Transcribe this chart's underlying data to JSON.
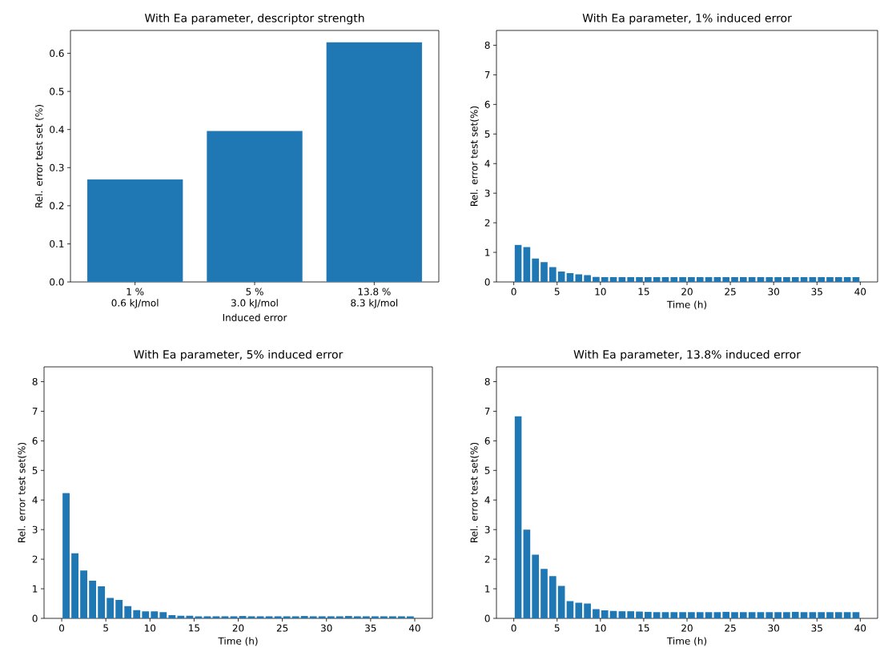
{
  "chart_data": [
    {
      "type": "bar",
      "title": "With Ea parameter, descriptor strength",
      "xlabel": "Induced error",
      "ylabel": "Rel. error test set (%)",
      "color": "#1f77b4",
      "categories": [
        "1 %\n0.6 kJ/mol",
        "5 %\n3.0 kJ/mol",
        "13.8 %\n8.3 kJ/mol"
      ],
      "values": [
        0.269,
        0.396,
        0.629
      ],
      "ylim": [
        0,
        0.66
      ],
      "yticks": [
        {
          "value": 0,
          "label": "0.0"
        },
        {
          "value": 0.1,
          "label": "0.1"
        },
        {
          "value": 0.2,
          "label": "0.2"
        },
        {
          "value": 0.3,
          "label": "0.3"
        },
        {
          "value": 0.4,
          "label": "0.4"
        },
        {
          "value": 0.5,
          "label": "0.5"
        },
        {
          "value": 0.6,
          "label": "0.6"
        }
      ]
    },
    {
      "type": "bar",
      "title": "With Ea parameter, 1% induced error",
      "xlabel": "Time (h)",
      "ylabel": "Rel. error test set(%)",
      "color": "#1f77b4",
      "x": [
        0.5,
        1.5,
        2.5,
        3.5,
        4.5,
        5.5,
        6.5,
        7.5,
        8.5,
        9.5,
        10.5,
        11.5,
        12.5,
        13.5,
        14.5,
        15.5,
        16.5,
        17.5,
        18.5,
        19.5,
        20.5,
        21.5,
        22.5,
        23.5,
        24.5,
        25.5,
        26.5,
        27.5,
        28.5,
        29.5,
        30.5,
        31.5,
        32.5,
        33.5,
        34.5,
        35.5,
        36.5,
        37.5,
        38.5,
        39.5
      ],
      "values": [
        1.25,
        1.18,
        0.79,
        0.67,
        0.5,
        0.35,
        0.3,
        0.26,
        0.23,
        0.17,
        0.16,
        0.16,
        0.16,
        0.16,
        0.16,
        0.16,
        0.16,
        0.16,
        0.16,
        0.16,
        0.16,
        0.16,
        0.16,
        0.16,
        0.16,
        0.16,
        0.16,
        0.16,
        0.16,
        0.16,
        0.16,
        0.16,
        0.16,
        0.16,
        0.16,
        0.16,
        0.16,
        0.16,
        0.16,
        0.16
      ],
      "xlim": [
        -2,
        42
      ],
      "xticks": [
        0,
        5,
        10,
        15,
        20,
        25,
        30,
        35,
        40
      ],
      "ylim": [
        0,
        8.5
      ],
      "yticks": [
        0,
        1,
        2,
        3,
        4,
        5,
        6,
        7,
        8
      ]
    },
    {
      "type": "bar",
      "title": "With Ea parameter, 5% induced error",
      "xlabel": "Time (h)",
      "ylabel": "Rel. error test set(%)",
      "color": "#1f77b4",
      "x": [
        0.5,
        1.5,
        2.5,
        3.5,
        4.5,
        5.5,
        6.5,
        7.5,
        8.5,
        9.5,
        10.5,
        11.5,
        12.5,
        13.5,
        14.5,
        15.5,
        16.5,
        17.5,
        18.5,
        19.5,
        20.5,
        21.5,
        22.5,
        23.5,
        24.5,
        25.5,
        26.5,
        27.5,
        28.5,
        29.5,
        30.5,
        31.5,
        32.5,
        33.5,
        34.5,
        35.5,
        36.5,
        37.5,
        38.5,
        39.5
      ],
      "values": [
        4.24,
        2.2,
        1.62,
        1.27,
        1.08,
        0.69,
        0.62,
        0.41,
        0.28,
        0.24,
        0.24,
        0.21,
        0.11,
        0.09,
        0.09,
        0.07,
        0.07,
        0.07,
        0.07,
        0.07,
        0.08,
        0.07,
        0.07,
        0.07,
        0.07,
        0.07,
        0.07,
        0.08,
        0.07,
        0.07,
        0.07,
        0.07,
        0.08,
        0.07,
        0.07,
        0.07,
        0.07,
        0.07,
        0.07,
        0.07
      ],
      "xlim": [
        -2,
        42
      ],
      "xticks": [
        0,
        5,
        10,
        15,
        20,
        25,
        30,
        35,
        40
      ],
      "ylim": [
        0,
        8.5
      ],
      "yticks": [
        0,
        1,
        2,
        3,
        4,
        5,
        6,
        7,
        8
      ]
    },
    {
      "type": "bar",
      "title": "With Ea parameter, 13.8% induced error",
      "xlabel": "Time (h)",
      "ylabel": "Rel. error test set(%)",
      "color": "#1f77b4",
      "x": [
        0.5,
        1.5,
        2.5,
        3.5,
        4.5,
        5.5,
        6.5,
        7.5,
        8.5,
        9.5,
        10.5,
        11.5,
        12.5,
        13.5,
        14.5,
        15.5,
        16.5,
        17.5,
        18.5,
        19.5,
        20.5,
        21.5,
        22.5,
        23.5,
        24.5,
        25.5,
        26.5,
        27.5,
        28.5,
        29.5,
        30.5,
        31.5,
        32.5,
        33.5,
        34.5,
        35.5,
        36.5,
        37.5,
        38.5,
        39.5
      ],
      "values": [
        6.83,
        3.0,
        2.15,
        1.67,
        1.43,
        1.1,
        0.58,
        0.53,
        0.5,
        0.31,
        0.27,
        0.25,
        0.24,
        0.24,
        0.23,
        0.22,
        0.21,
        0.21,
        0.21,
        0.21,
        0.21,
        0.21,
        0.21,
        0.21,
        0.22,
        0.21,
        0.21,
        0.21,
        0.21,
        0.21,
        0.21,
        0.21,
        0.22,
        0.21,
        0.21,
        0.21,
        0.21,
        0.21,
        0.21,
        0.21
      ],
      "xlim": [
        -2,
        42
      ],
      "xticks": [
        0,
        5,
        10,
        15,
        20,
        25,
        30,
        35,
        40
      ],
      "ylim": [
        0,
        8.5
      ],
      "yticks": [
        0,
        1,
        2,
        3,
        4,
        5,
        6,
        7,
        8
      ]
    }
  ]
}
